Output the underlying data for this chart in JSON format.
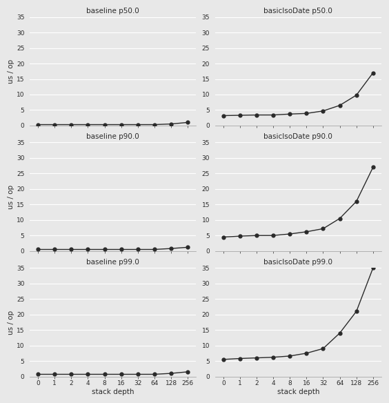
{
  "x_labels": [
    "0",
    "1",
    "2",
    "4",
    "8",
    "16",
    "32",
    "64",
    "128",
    "256"
  ],
  "x_positions": [
    0,
    1,
    2,
    3,
    4,
    5,
    6,
    7,
    8,
    9
  ],
  "baseline_p50": [
    0.3,
    0.3,
    0.3,
    0.3,
    0.3,
    0.3,
    0.3,
    0.3,
    0.5,
    1.0
  ],
  "baseline_p90": [
    0.5,
    0.5,
    0.5,
    0.5,
    0.5,
    0.5,
    0.5,
    0.5,
    0.8,
    1.2
  ],
  "baseline_p99": [
    0.7,
    0.7,
    0.7,
    0.7,
    0.7,
    0.7,
    0.7,
    0.7,
    1.0,
    1.5
  ],
  "basicIsoDate_p50": [
    3.2,
    3.3,
    3.4,
    3.4,
    3.7,
    3.9,
    4.7,
    6.5,
    9.8,
    17.0
  ],
  "basicIsoDate_p90": [
    4.5,
    4.8,
    5.0,
    5.0,
    5.5,
    6.2,
    7.2,
    10.5,
    16.0,
    27.0
  ],
  "basicIsoDate_p99": [
    5.5,
    5.8,
    6.0,
    6.2,
    6.6,
    7.5,
    9.0,
    14.0,
    21.0,
    35.0
  ],
  "ylim": [
    0,
    35
  ],
  "yticks": [
    0,
    5,
    10,
    15,
    20,
    25,
    30,
    35
  ],
  "titles": [
    [
      "baseline p50.0",
      "basicIsoDate p50.0"
    ],
    [
      "baseline p90.0",
      "basicIsoDate p90.0"
    ],
    [
      "baseline p99.0",
      "basicIsoDate p99.0"
    ]
  ],
  "ylabel": "us / op",
  "xlabel": "stack depth",
  "line_color": "#2a2a2a",
  "marker": "o",
  "markersize": 3.5,
  "bg_color": "#e8e8e8",
  "fig_color": "#e8e8e8",
  "grid_color": "#ffffff",
  "font_color": "#2a2a2a",
  "title_fontsize": 7.5,
  "tick_fontsize": 6.5,
  "label_fontsize": 7.5
}
